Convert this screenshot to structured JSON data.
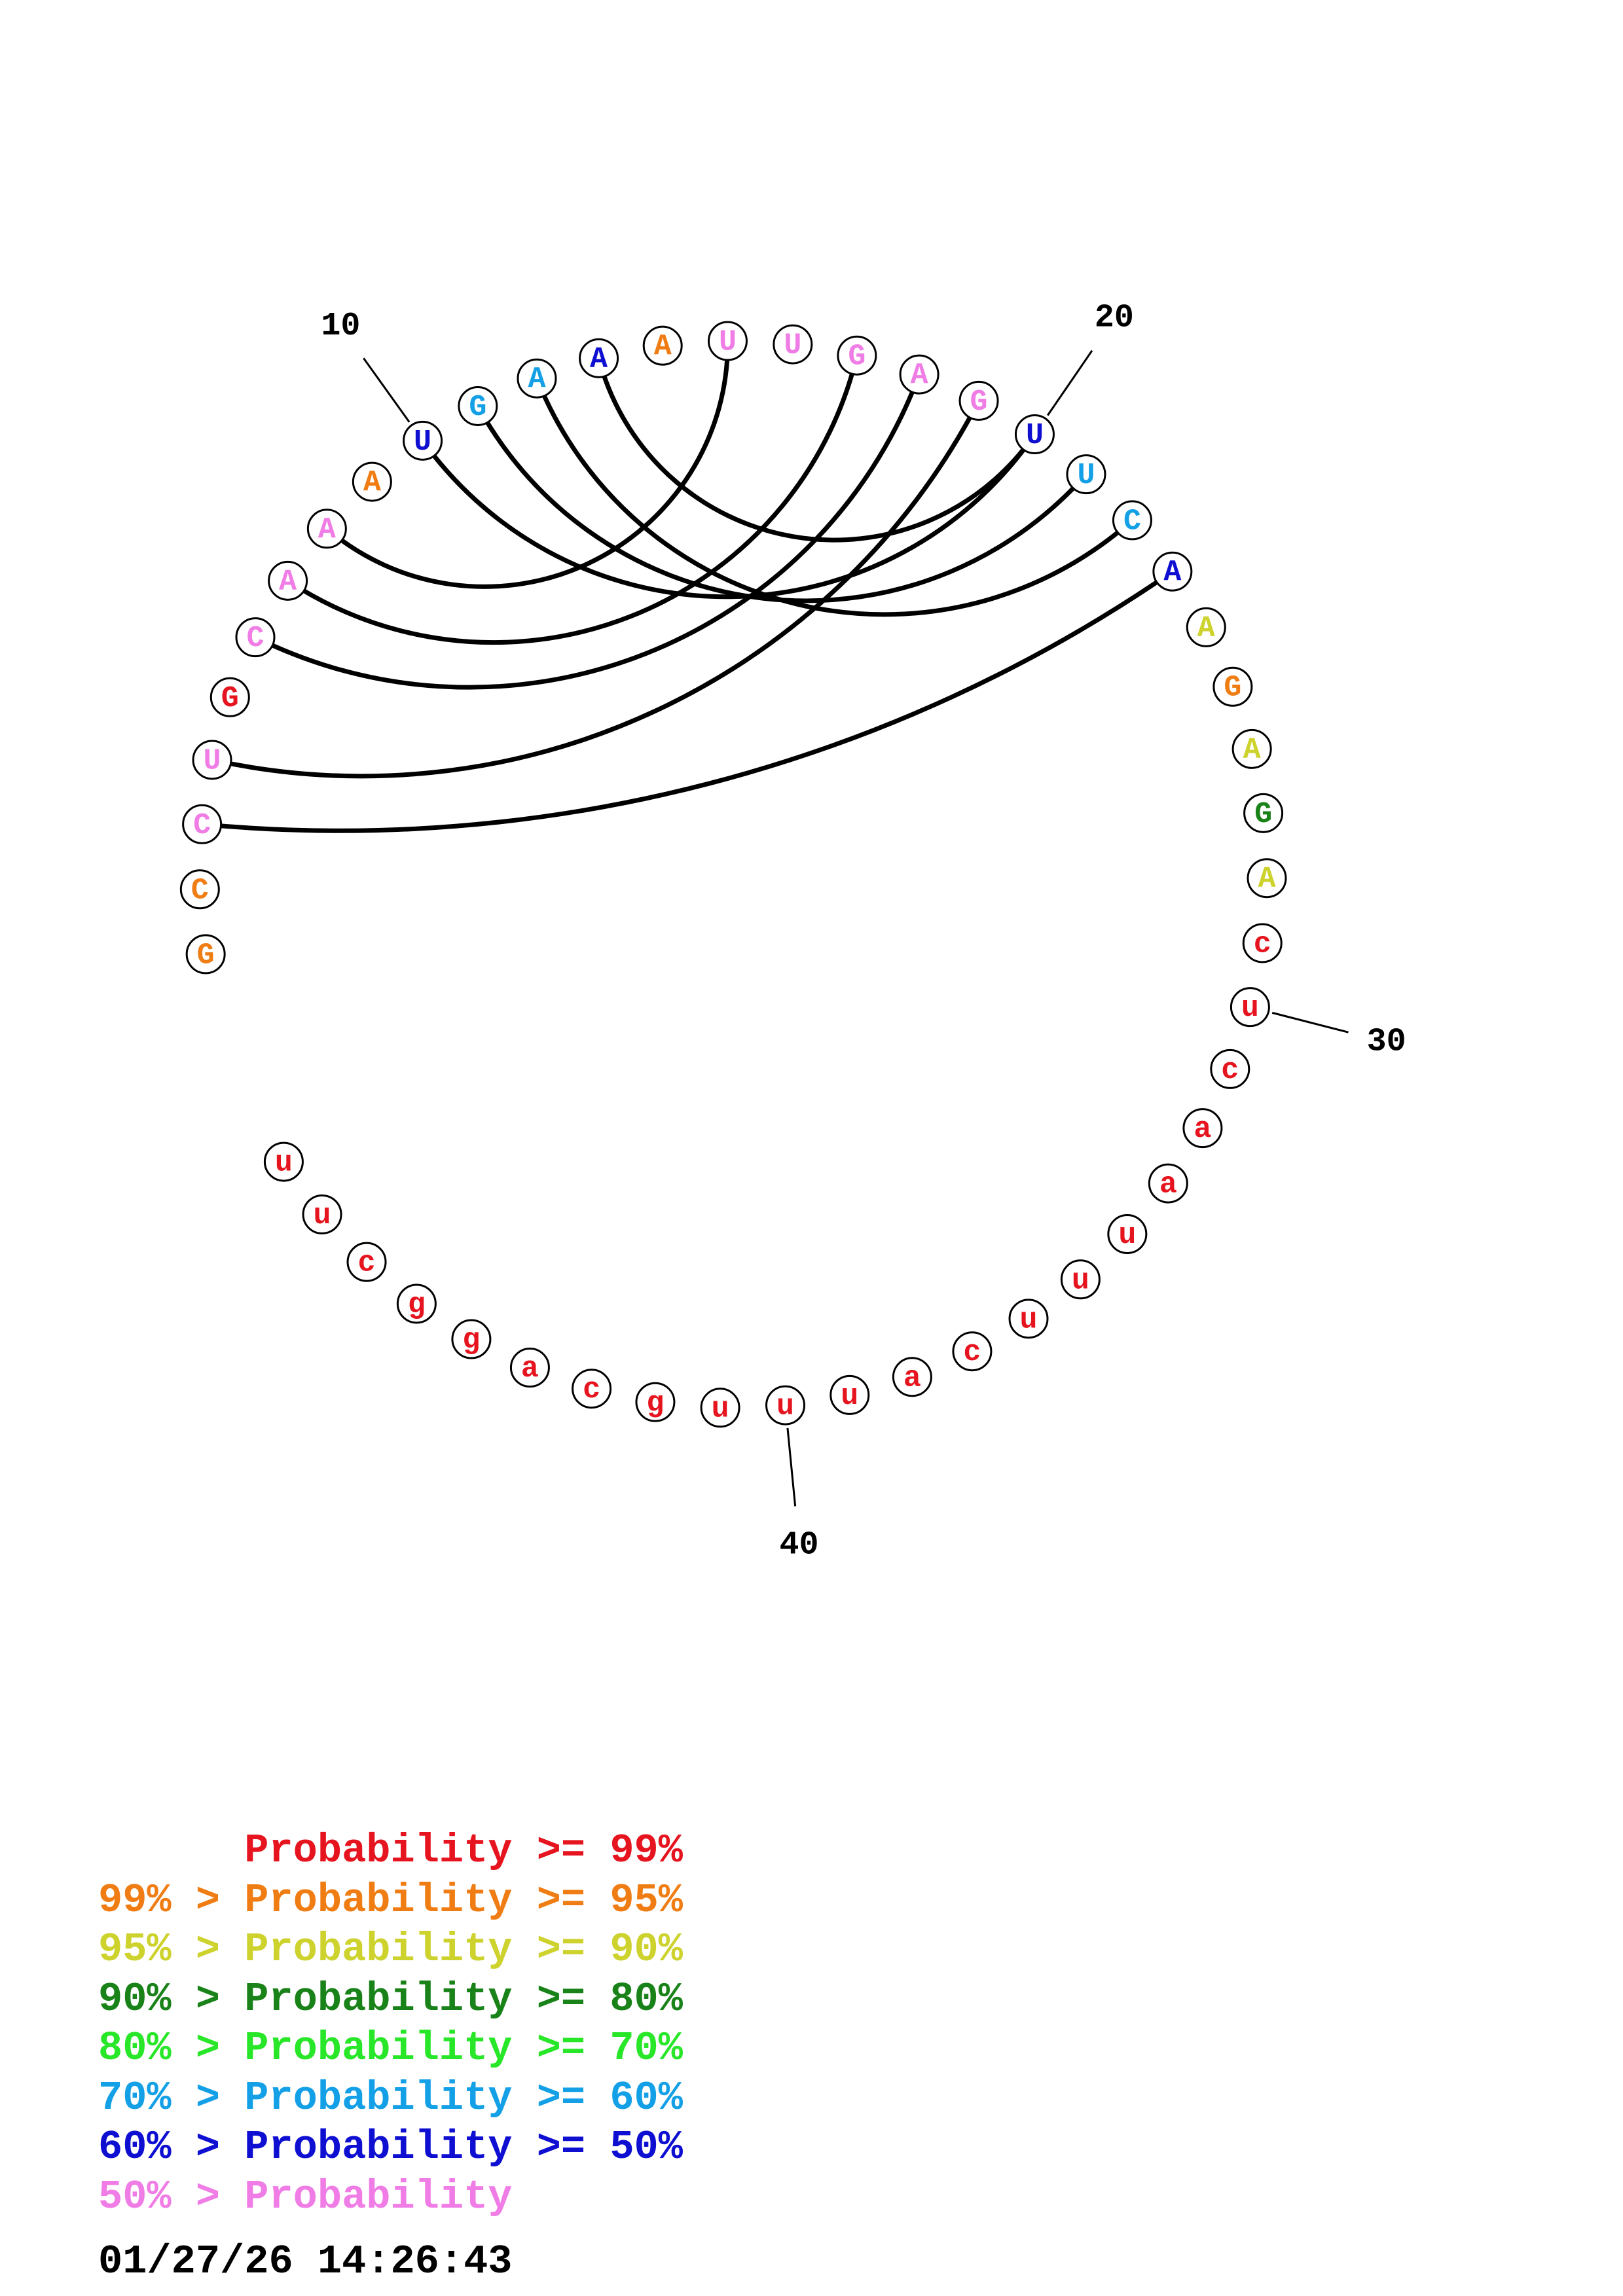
{
  "colors": {
    "red": "#e6141e",
    "orange": "#f07d14",
    "yellow": "#cdd22d",
    "darkgreen": "#198219",
    "green": "#28e628",
    "cyan": "#14a0e6",
    "blue": "#0f0fd2",
    "pink": "#f07de6"
  },
  "nucleotides": [
    {
      "index": 1,
      "base": "G",
      "color": "orange"
    },
    {
      "index": 2,
      "base": "C",
      "color": "orange"
    },
    {
      "index": 3,
      "base": "C",
      "color": "pink"
    },
    {
      "index": 4,
      "base": "U",
      "color": "pink"
    },
    {
      "index": 5,
      "base": "G",
      "color": "red"
    },
    {
      "index": 6,
      "base": "C",
      "color": "pink"
    },
    {
      "index": 7,
      "base": "A",
      "color": "pink"
    },
    {
      "index": 8,
      "base": "A",
      "color": "pink"
    },
    {
      "index": 9,
      "base": "A",
      "color": "orange"
    },
    {
      "index": 10,
      "base": "U",
      "color": "blue"
    },
    {
      "index": 11,
      "base": "G",
      "color": "cyan"
    },
    {
      "index": 12,
      "base": "A",
      "color": "cyan"
    },
    {
      "index": 13,
      "base": "A",
      "color": "blue"
    },
    {
      "index": 14,
      "base": "A",
      "color": "orange"
    },
    {
      "index": 15,
      "base": "U",
      "color": "pink"
    },
    {
      "index": 16,
      "base": "U",
      "color": "pink"
    },
    {
      "index": 17,
      "base": "G",
      "color": "pink"
    },
    {
      "index": 18,
      "base": "A",
      "color": "pink"
    },
    {
      "index": 19,
      "base": "G",
      "color": "pink"
    },
    {
      "index": 20,
      "base": "U",
      "color": "blue"
    },
    {
      "index": 21,
      "base": "U",
      "color": "cyan"
    },
    {
      "index": 22,
      "base": "C",
      "color": "cyan"
    },
    {
      "index": 23,
      "base": "A",
      "color": "blue"
    },
    {
      "index": 24,
      "base": "A",
      "color": "yellow"
    },
    {
      "index": 25,
      "base": "G",
      "color": "orange"
    },
    {
      "index": 26,
      "base": "A",
      "color": "yellow"
    },
    {
      "index": 27,
      "base": "G",
      "color": "darkgreen"
    },
    {
      "index": 28,
      "base": "A",
      "color": "yellow"
    },
    {
      "index": 29,
      "base": "c",
      "color": "red"
    },
    {
      "index": 30,
      "base": "u",
      "color": "red"
    },
    {
      "index": 31,
      "base": "c",
      "color": "red"
    },
    {
      "index": 32,
      "base": "a",
      "color": "red"
    },
    {
      "index": 33,
      "base": "a",
      "color": "red"
    },
    {
      "index": 34,
      "base": "u",
      "color": "red"
    },
    {
      "index": 35,
      "base": "u",
      "color": "red"
    },
    {
      "index": 36,
      "base": "u",
      "color": "red"
    },
    {
      "index": 37,
      "base": "c",
      "color": "red"
    },
    {
      "index": 38,
      "base": "a",
      "color": "red"
    },
    {
      "index": 39,
      "base": "u",
      "color": "red"
    },
    {
      "index": 40,
      "base": "u",
      "color": "red"
    },
    {
      "index": 41,
      "base": "u",
      "color": "red"
    },
    {
      "index": 42,
      "base": "g",
      "color": "red"
    },
    {
      "index": 43,
      "base": "c",
      "color": "red"
    },
    {
      "index": 44,
      "base": "a",
      "color": "red"
    },
    {
      "index": 45,
      "base": "g",
      "color": "red"
    },
    {
      "index": 46,
      "base": "g",
      "color": "red"
    },
    {
      "index": 47,
      "base": "c",
      "color": "red"
    },
    {
      "index": 48,
      "base": "u",
      "color": "red"
    },
    {
      "index": 49,
      "base": "u",
      "color": "red"
    }
  ],
  "pairs": [
    [
      3,
      23
    ],
    [
      4,
      19
    ],
    [
      6,
      18
    ],
    [
      7,
      17
    ],
    [
      8,
      15
    ],
    [
      10,
      20
    ],
    [
      11,
      21
    ],
    [
      12,
      22
    ],
    [
      13,
      20
    ]
  ],
  "position_labels": [
    {
      "index": 10,
      "text": "10"
    },
    {
      "index": 20,
      "text": "20"
    },
    {
      "index": 30,
      "text": "30"
    },
    {
      "index": 40,
      "text": "40"
    }
  ],
  "legend": [
    {
      "prefix": "",
      "text": "Probability >= 99%",
      "color": "red"
    },
    {
      "prefix": "99% > ",
      "text": "Probability >= 95%",
      "color": "orange"
    },
    {
      "prefix": "95% > ",
      "text": "Probability >= 90%",
      "color": "yellow"
    },
    {
      "prefix": "90% > ",
      "text": "Probability >= 80%",
      "color": "darkgreen"
    },
    {
      "prefix": "80% > ",
      "text": "Probability >= 70%",
      "color": "green"
    },
    {
      "prefix": "70% > ",
      "text": "Probability >= 60%",
      "color": "cyan"
    },
    {
      "prefix": "60% > ",
      "text": "Probability >= 50%",
      "color": "blue"
    },
    {
      "prefix": "50% > ",
      "text": "Probability",
      "color": "pink"
    }
  ],
  "timestamp": "01/27/26 14:26:43"
}
